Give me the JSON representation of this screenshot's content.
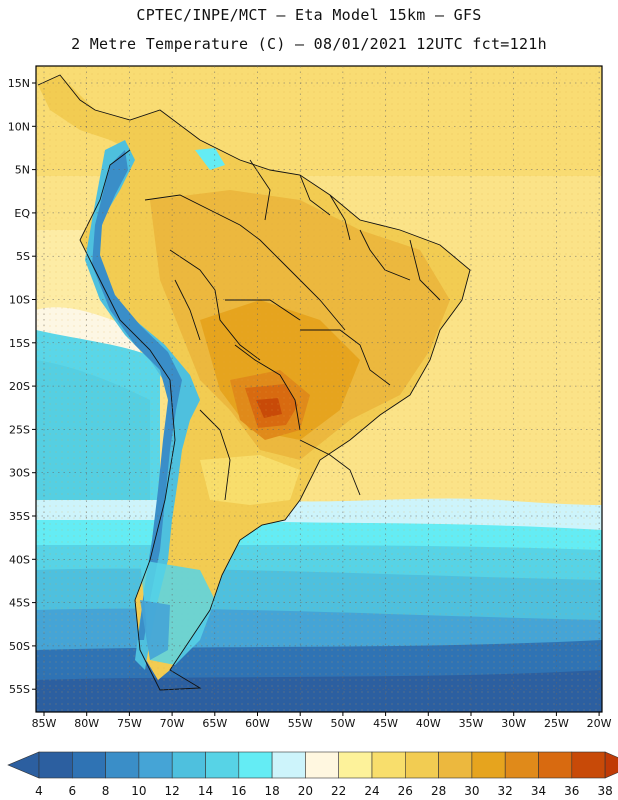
{
  "header": {
    "line1": "CPTEC/INPE/MCT –  Eta Model 15km – GFS",
    "line2": "2 Metre Temperature (C) – 08/01/2021 12UTC fct=121h"
  },
  "map": {
    "lat_labels": [
      "15N",
      "10N",
      "5N",
      "EQ",
      "5S",
      "10S",
      "15S",
      "20S",
      "25S",
      "30S",
      "35S",
      "40S",
      "45S",
      "50S",
      "55S"
    ],
    "lon_labels": [
      "85W",
      "80W",
      "75W",
      "70W",
      "65W",
      "60W",
      "55W",
      "50W",
      "45W",
      "40W",
      "35W",
      "30W",
      "25W",
      "20W"
    ]
  },
  "colorbar": {
    "labels": [
      "4",
      "6",
      "8",
      "10",
      "12",
      "14",
      "16",
      "18",
      "20",
      "22",
      "24",
      "26",
      "28",
      "30",
      "32",
      "34",
      "36",
      "38"
    ],
    "colors": [
      "#2c5fa0",
      "#2f73b4",
      "#3a8ec8",
      "#45a4d6",
      "#4ec0de",
      "#57d3e6",
      "#64ecf4",
      "#cdf4fb",
      "#fff7e0",
      "#fdf29a",
      "#f8de6c",
      "#f2cc52",
      "#ecb83e",
      "#e6a41e",
      "#e08a1a",
      "#d86a10",
      "#c84a08"
    ],
    "low_color": "#2c5fa0",
    "high_color": "#c03a06"
  }
}
